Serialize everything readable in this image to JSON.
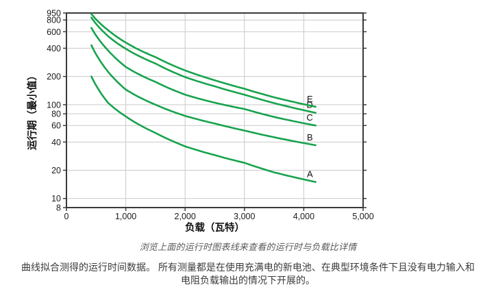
{
  "chart_data": {
    "type": "line",
    "title": "",
    "xlabel": "负载（瓦特）",
    "ylabel": "运行期（最小值）",
    "x_axis": {
      "scale": "linear",
      "min": 0,
      "max": 5000,
      "ticks": [
        0,
        1000,
        2000,
        3000,
        4000,
        5000
      ],
      "tick_labels": [
        "0",
        "1,000",
        "2,000",
        "3,000",
        "4,000",
        "5,000"
      ]
    },
    "y_axis": {
      "scale": "log",
      "min": 8,
      "max": 950,
      "ticks": [
        950,
        800,
        600,
        400,
        200,
        100,
        80,
        60,
        40,
        20,
        10,
        8
      ]
    },
    "grid": {
      "horizontal_at": [
        800,
        600,
        400,
        200,
        100,
        80,
        60,
        40,
        20,
        10
      ],
      "vertical_at": [
        1000,
        2000,
        3000,
        4000
      ]
    },
    "x_samples": [
      420,
      700,
      1000,
      1500,
      2000,
      2500,
      3000,
      3500,
      4200
    ],
    "series": [
      {
        "name": "A",
        "values": [
          200,
          105,
          75,
          50,
          36,
          29,
          24,
          19,
          15
        ]
      },
      {
        "name": "B",
        "values": [
          430,
          225,
          145,
          100,
          76,
          63,
          53,
          45,
          37
        ]
      },
      {
        "name": "C",
        "values": [
          660,
          380,
          253,
          175,
          128,
          105,
          90,
          74,
          60
        ]
      },
      {
        "name": "D",
        "values": [
          850,
          540,
          395,
          275,
          197,
          157,
          128,
          104,
          82
        ]
      },
      {
        "name": "E",
        "values": [
          930,
          625,
          460,
          322,
          232,
          182,
          148,
          120,
          95
        ]
      }
    ],
    "legend_position": "labels-at-line-ends",
    "colors": {
      "line": "#17a34d",
      "grid": "#c9c9c9",
      "axis": "#3a3a3a",
      "tick_text": "#1a1a1a"
    }
  },
  "caption": "浏览上面的运行时图表线来查看的运行时与负载比详情",
  "description": {
    "lines": [
      "曲线拟合测得的运行时间数据。 所有测量都是在使用充满电的新电池、在典型环境条件下且没有电力输入和",
      "电阻负载输出的情况下开展的。"
    ]
  }
}
